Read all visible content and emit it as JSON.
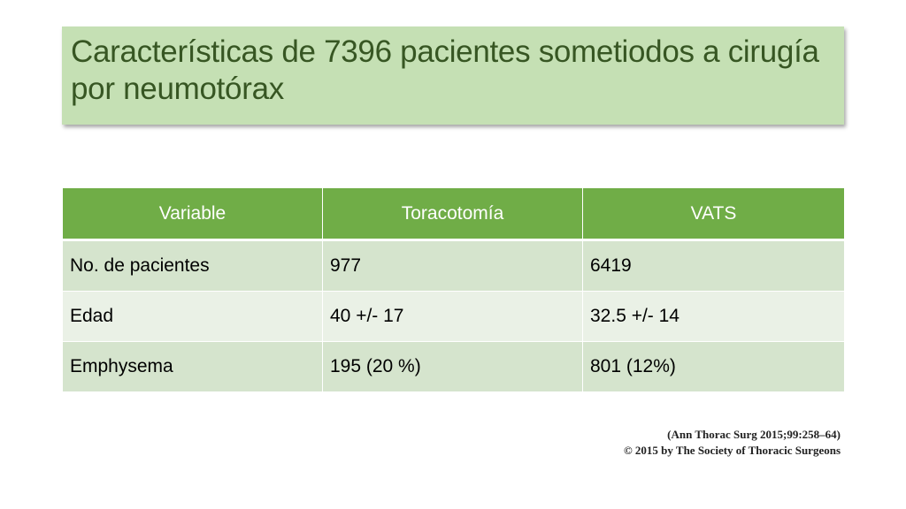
{
  "slide": {
    "title": "Características de 7396 pacientes sometiodos a cirugía por neumotórax"
  },
  "table": {
    "headers": [
      "Variable",
      "Toracotomía",
      "VATS"
    ],
    "rows": [
      [
        "No. de pacientes",
        "977",
        "6419"
      ],
      [
        "Edad",
        "40 +/- 17",
        "32.5 +/- 14"
      ],
      [
        "Emphysema",
        "195 (20 %)",
        "801 (12%)"
      ]
    ]
  },
  "citation": {
    "line1": "(Ann Thorac Surg 2015;99:258–64)",
    "line2": "© 2015 by The Society of Thoracic Surgeons"
  },
  "colors": {
    "title_bg": "#c5e0b4",
    "title_text": "#375623",
    "header_bg": "#70ad47",
    "row_dark": "#d5e4cd",
    "row_light": "#eaf1e6"
  }
}
